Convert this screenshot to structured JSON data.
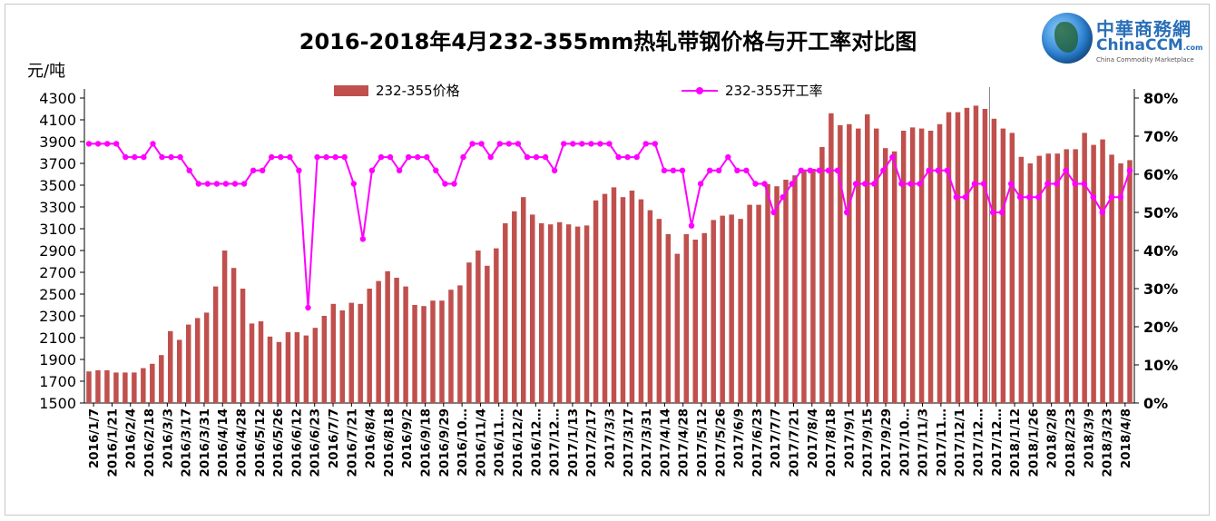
{
  "chart_data": {
    "type": "bar+line",
    "title": "2016-2018年4月232-355mm热轧带钢价格与开工率对比图",
    "y_left_unit": "元/吨",
    "y_left_range": [
      1500,
      4300
    ],
    "y_left_ticks": [
      1500,
      1700,
      1900,
      2100,
      2300,
      2500,
      2700,
      2900,
      3100,
      3300,
      3500,
      3700,
      3900,
      4100,
      4300
    ],
    "y_right_range": [
      0,
      80
    ],
    "y_right_ticks": [
      "0%",
      "10%",
      "20%",
      "30%",
      "40%",
      "50%",
      "60%",
      "70%",
      "80%"
    ],
    "x_tick_labels": [
      "2016/1/7",
      "2016/1/21",
      "2016/2/4",
      "2016/2/18",
      "2016/3/3",
      "2016/3/17",
      "2016/3/31",
      "2016/4/14",
      "2016/4/28",
      "2016/5/12",
      "2016/5/26",
      "2016/6/12",
      "2016/6/23",
      "2016/7/7",
      "2016/7/21",
      "2016/8/4",
      "2016/8/18",
      "2016/9/2",
      "2016/9/18",
      "2016/9/29",
      "2016/10…",
      "2016/11/4",
      "2016/11…",
      "2016/12/2",
      "2016/12…",
      "2017/12…",
      "2017/1/13",
      "2017/2/17",
      "2017/3/3",
      "2017/3/17",
      "2017/3/31",
      "2017/4/14",
      "2017/4/28",
      "2017/5/12",
      "2017/5/26",
      "2017/6/9",
      "2017/6/23",
      "2017/7/7",
      "2017/7/21",
      "2017/8/4",
      "2017/8/18",
      "2017/9/1",
      "2017/9/15",
      "2017/9/29",
      "2017/10…",
      "2017/11/3",
      "2017/11…",
      "2017/12/1",
      "2017/12…",
      "2017/12…",
      "2018/1/12",
      "2018/1/26",
      "2018/2/8",
      "2018/2/23",
      "2018/3/9",
      "2018/3/23",
      "2018/4/8"
    ],
    "legend_position": "top",
    "grid": false,
    "series": [
      {
        "name": "232-355价格",
        "type": "bar",
        "axis": "left",
        "color": "#c0504d",
        "values": [
          1790,
          1800,
          1800,
          1780,
          1780,
          1780,
          1820,
          1860,
          1940,
          2160,
          2080,
          2220,
          2280,
          2330,
          2570,
          2900,
          2740,
          2550,
          2230,
          2250,
          2110,
          2060,
          2150,
          2150,
          2120,
          2190,
          2300,
          2410,
          2350,
          2420,
          2410,
          2550,
          2620,
          2710,
          2650,
          2570,
          2400,
          2390,
          2440,
          2440,
          2540,
          2580,
          2790,
          2900,
          2760,
          2920,
          3150,
          3260,
          3390,
          3230,
          3150,
          3140,
          3160,
          3140,
          3120,
          3130,
          3360,
          3420,
          3480,
          3390,
          3450,
          3370,
          3270,
          3190,
          3050,
          2870,
          3050,
          3000,
          3060,
          3180,
          3220,
          3230,
          3190,
          3320,
          3320,
          3510,
          3490,
          3550,
          3590,
          3630,
          3650,
          3850,
          4160,
          4050,
          4060,
          4020,
          4150,
          4020,
          3840,
          3810,
          4000,
          4030,
          4020,
          4000,
          4060,
          4170,
          4170,
          4210,
          4230,
          4200,
          4110,
          4020,
          3980,
          3760,
          3700,
          3770,
          3790,
          3790,
          3830,
          3830,
          3980,
          3870,
          3920,
          3780,
          3700,
          3730
        ]
      },
      {
        "name": "232-355开工率",
        "type": "line",
        "axis": "right",
        "color": "#ff00ff",
        "values": [
          68,
          68,
          68,
          68,
          64.5,
          64.5,
          64.5,
          68,
          64.5,
          64.5,
          64.5,
          61,
          57.5,
          57.5,
          57.5,
          57.5,
          57.5,
          57.5,
          61,
          61,
          64.5,
          64.5,
          64.5,
          61,
          25,
          64.5,
          64.5,
          64.5,
          64.5,
          57.5,
          43,
          61,
          64.5,
          64.5,
          61,
          64.5,
          64.5,
          64.5,
          61,
          57.5,
          57.5,
          64.5,
          68,
          68,
          64.5,
          68,
          68,
          68,
          64.5,
          64.5,
          64.5,
          61,
          68,
          68,
          68,
          68,
          68,
          68,
          64.5,
          64.5,
          64.5,
          68,
          68,
          61,
          61,
          61,
          46.5,
          57.5,
          61,
          61,
          64.5,
          61,
          61,
          57.5,
          57.5,
          50,
          54,
          57.5,
          61,
          61,
          61,
          61,
          61,
          50,
          57.5,
          57.5,
          57.5,
          61,
          64.5,
          57.5,
          57.5,
          57.5,
          61,
          61,
          61,
          54,
          54,
          57.5,
          57.5,
          50,
          50,
          57.5,
          54,
          54,
          54,
          57.5,
          57.5,
          61,
          57.5,
          57.5,
          54,
          50,
          54,
          54,
          61
        ]
      }
    ]
  },
  "logo": {
    "name_cn": "中華商務網",
    "name_en": "ChinaCCM",
    "domain": ".com",
    "tagline": "China Commodity Marketplace"
  }
}
